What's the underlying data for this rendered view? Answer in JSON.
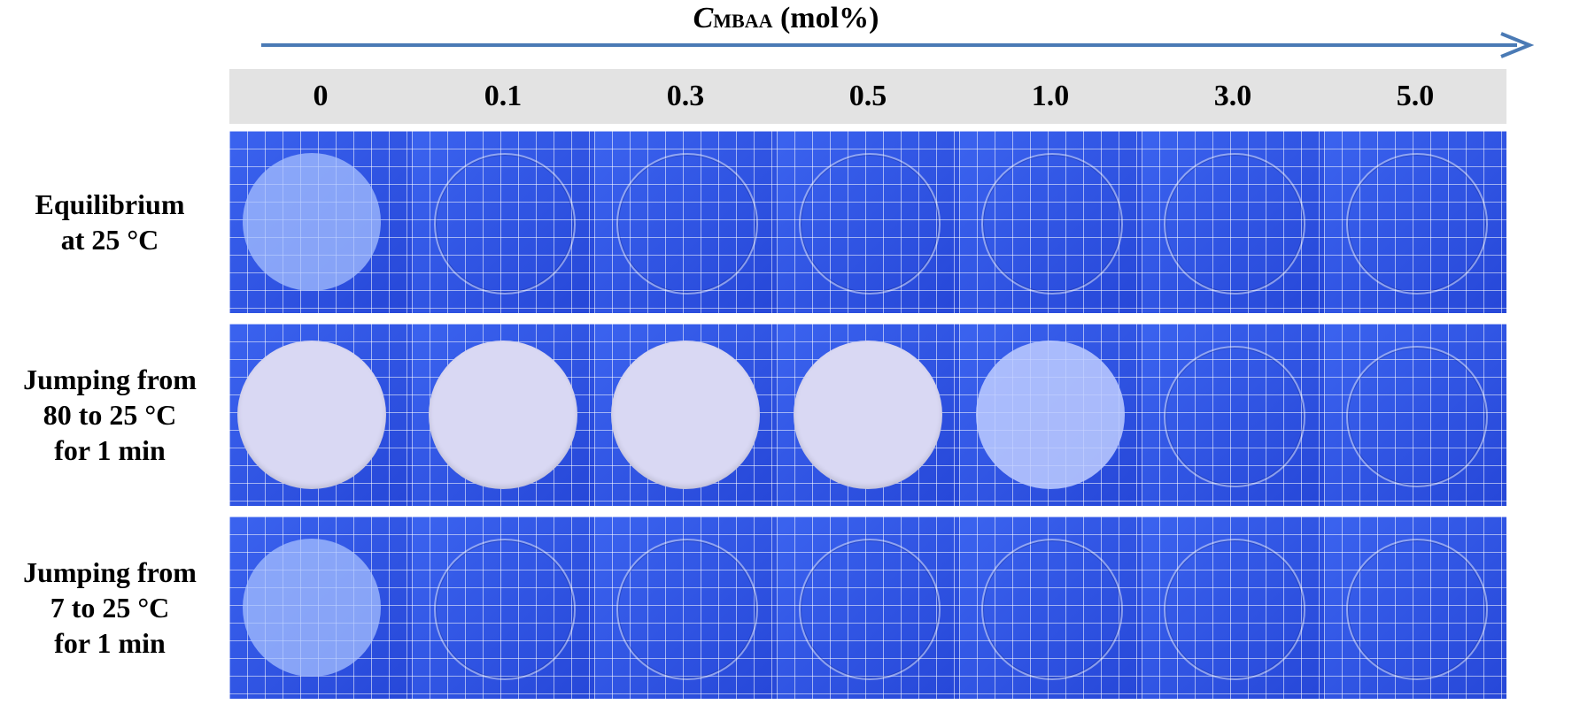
{
  "axis": {
    "variable": "C",
    "subscript": "MBAA",
    "unit": " (mol%)"
  },
  "columns": [
    "0",
    "0.1",
    "0.3",
    "0.5",
    "1.0",
    "3.0",
    "5.0"
  ],
  "rows": [
    {
      "label": [
        "Equilibrium",
        "at 25 °C"
      ],
      "states": [
        "translucent",
        "clear",
        "clear",
        "clear",
        "clear",
        "clear",
        "clear"
      ]
    },
    {
      "label": [
        "Jumping from",
        "80 to 25 °C",
        "for 1 min"
      ],
      "states": [
        "opaque",
        "opaque",
        "opaque",
        "opaque",
        "semi",
        "clear",
        "clear"
      ]
    },
    {
      "label": [
        "Jumping from",
        "7 to 25 °C",
        "for 1 min"
      ],
      "states": [
        "translucent",
        "clear",
        "clear",
        "clear",
        "clear",
        "clear",
        "clear"
      ]
    }
  ],
  "colors": {
    "arrow": "#4a7ab5",
    "header_bg": "#e3e3e3",
    "grid_paper": "#2f57e6"
  }
}
